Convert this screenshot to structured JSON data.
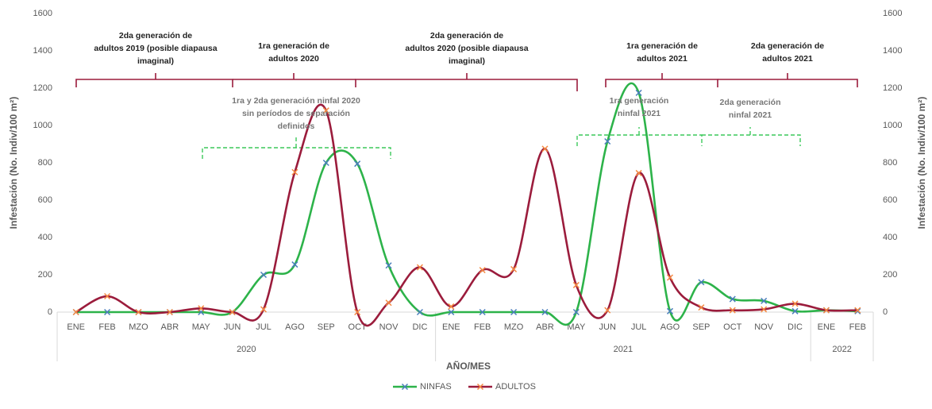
{
  "chart_data": {
    "type": "line",
    "x_title": "AÑO/MES",
    "y_title": "Infestación (No. Indiv/100 m²)",
    "y2_title": "Infestación (No. Indiv/100 m²)",
    "category_groups": [
      {
        "label": "2020",
        "categories": [
          "ENE",
          "FEB",
          "MZO",
          "ABR",
          "MAY",
          "JUN",
          "JUL",
          "AGO",
          "SEP",
          "OCT",
          "NOV",
          "DIC"
        ]
      },
      {
        "label": "2021",
        "categories": [
          "ENE",
          "FEB",
          "MZO",
          "ABR",
          "MAY",
          "JUN",
          "JUL",
          "AGO",
          "SEP",
          "OCT",
          "NOV",
          "DIC"
        ]
      },
      {
        "label": "2022",
        "categories": [
          "ENE",
          "FEB"
        ]
      }
    ],
    "ylim": [
      0,
      1600
    ],
    "yticks": [
      0,
      200,
      400,
      600,
      800,
      1000,
      1200,
      1400,
      1600
    ],
    "y2lim": [
      0,
      1600
    ],
    "y2ticks": [
      0,
      200,
      400,
      600,
      800,
      1000,
      1200,
      1400,
      1600
    ],
    "smooth": true,
    "legend": "bottom",
    "series": [
      {
        "name": "NINFAS",
        "color": "#2db34a",
        "marker_color": "#4a7ebb",
        "values": [
          0,
          0,
          0,
          0,
          0,
          0,
          200,
          255,
          800,
          795,
          250,
          0,
          0,
          0,
          0,
          0,
          0,
          915,
          1175,
          5,
          160,
          70,
          60,
          5,
          10,
          5
        ]
      },
      {
        "name": "ADULTOS",
        "color": "#9b1c3c",
        "marker_color": "#f58a42",
        "values": [
          0,
          85,
          0,
          0,
          20,
          0,
          15,
          750,
          1080,
          0,
          50,
          240,
          30,
          225,
          230,
          875,
          145,
          10,
          745,
          185,
          25,
          10,
          15,
          45,
          10,
          10
        ]
      }
    ],
    "annotations": [
      {
        "lines": [
          "2da generación de",
          "adultos 2019 (posible diapausa",
          "imaginal)"
        ]
      },
      {
        "lines": [
          "1ra generación de",
          "adultos 2020"
        ]
      },
      {
        "lines": [
          "2da generación de",
          "adultos 2020 (posible diapausa",
          "imaginal)"
        ]
      },
      {
        "lines": [
          "1ra generación de",
          "adultos 2021"
        ]
      },
      {
        "lines": [
          "2da generación de",
          "adultos 2021"
        ]
      },
      {
        "lines": [
          "1ra y 2da generación ninfal 2020",
          "sin períodos de separación",
          "definidos"
        ]
      },
      {
        "lines": [
          "1ra generación",
          "ninfal 2021"
        ]
      },
      {
        "lines": [
          "2da generación",
          "ninfal 2021"
        ]
      }
    ]
  }
}
